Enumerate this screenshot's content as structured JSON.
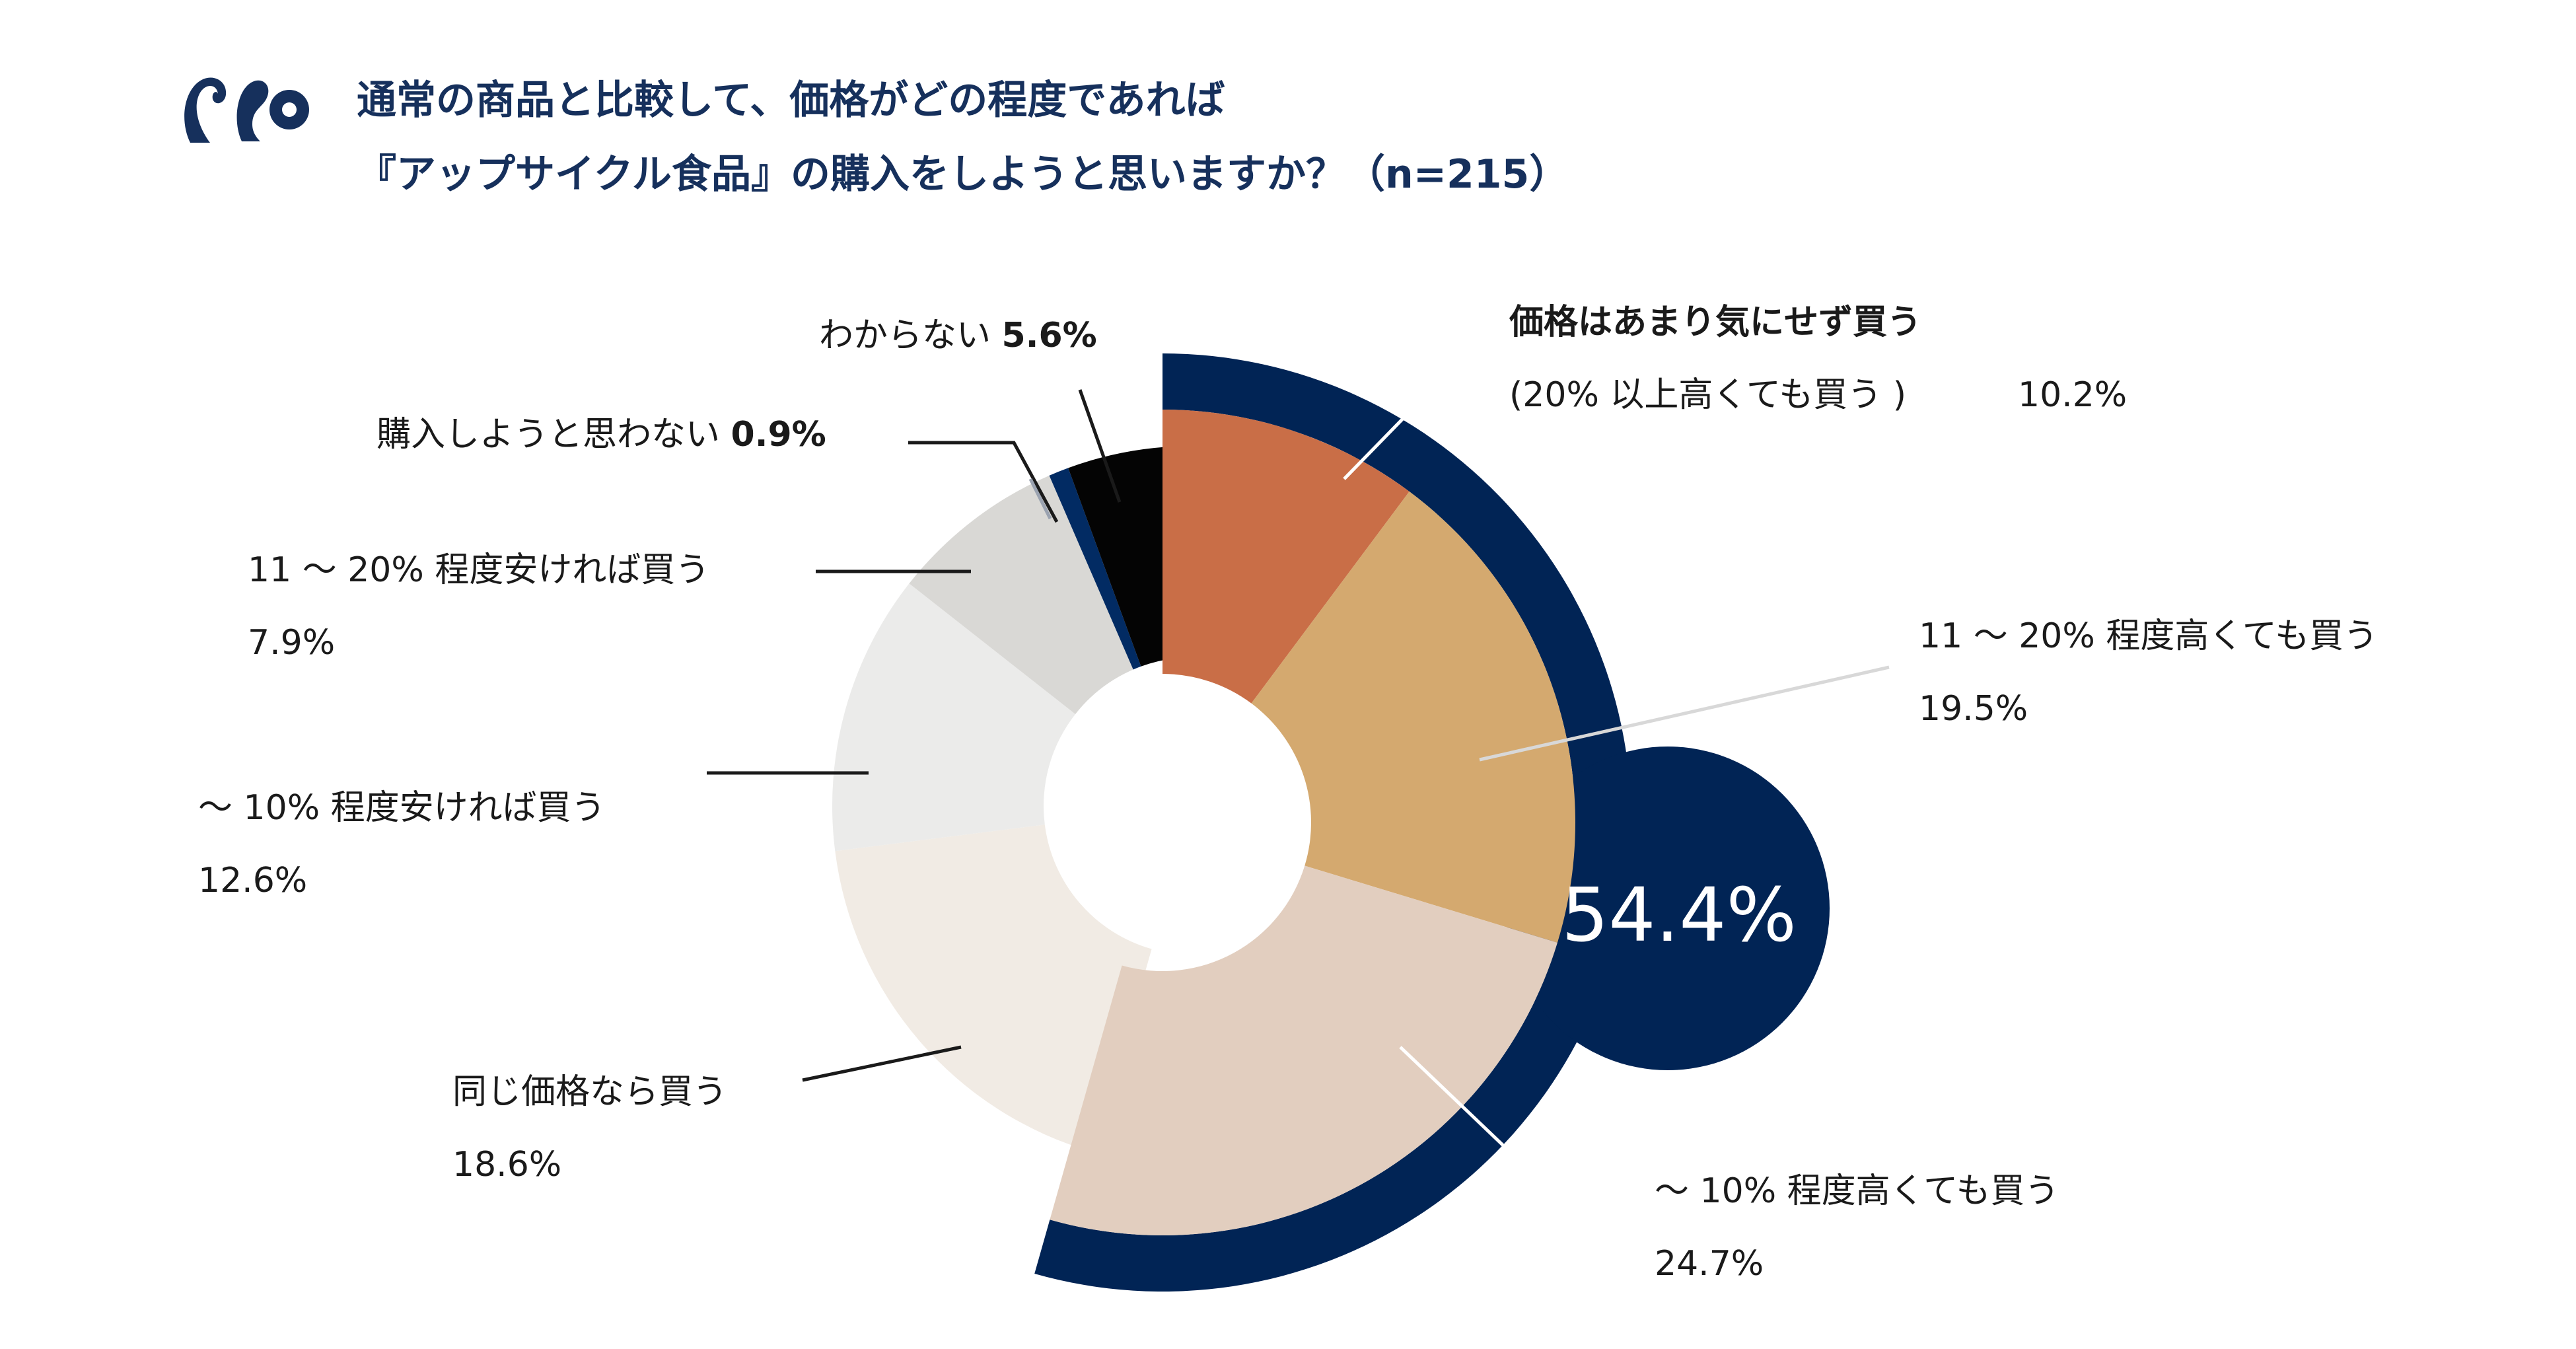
{
  "title": {
    "line1": "通常の商品と比較して、価格がどの程度であれば",
    "line2": "『アップサイクル食品』の購入をしようと思いますか？（n=215）"
  },
  "highlight": {
    "value": "54.4%",
    "color": "#012455"
  },
  "chart_data": {
    "type": "pie",
    "title": "通常の商品と比較して、価格がどの程度であれば『アップサイクル食品』の購入をしようと思いますか？（n=215）",
    "n": 215,
    "unit": "%",
    "slices": [
      {
        "label_lines": [
          "価格はあまり気にせず買う",
          "(20% 以上高くても買う )"
        ],
        "value": 10.2,
        "value_text": "10.2%",
        "color": "#c96e47",
        "group": "pay_more"
      },
      {
        "label_lines": [
          "11 〜 20% 程度高くても買う"
        ],
        "value": 19.5,
        "value_text": "19.5%",
        "color": "#d4a96f",
        "group": "pay_more"
      },
      {
        "label_lines": [
          "〜 10% 程度高くても買う"
        ],
        "value": 24.7,
        "value_text": "24.7%",
        "color": "#e2cebf",
        "group": "pay_more"
      },
      {
        "label_lines": [
          "同じ価格なら買う"
        ],
        "value": 18.6,
        "value_text": "18.6%",
        "color": "#f1ebe4",
        "group": "other"
      },
      {
        "label_lines": [
          "〜 10% 程度安ければ買う"
        ],
        "value": 12.6,
        "value_text": "12.6%",
        "color": "#ebebea",
        "group": "other"
      },
      {
        "label_lines": [
          "11 〜 20% 程度安ければ買う"
        ],
        "value": 7.9,
        "value_text": "7.9%",
        "color": "#d9d8d5",
        "group": "other"
      },
      {
        "label_lines": [
          "購入しようと思わない"
        ],
        "value": 0.9,
        "value_text": "0.9%",
        "color": "#022b63",
        "group": "other"
      },
      {
        "label_lines": [
          "わからない"
        ],
        "value": 5.6,
        "value_text": "5.6%",
        "color": "#040404",
        "group": "other"
      }
    ]
  }
}
